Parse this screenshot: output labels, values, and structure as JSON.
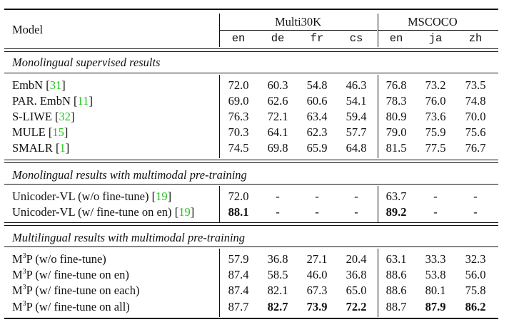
{
  "header": {
    "model_label": "Model",
    "group1": "Multi30K",
    "group2": "MSCOCO",
    "langs": [
      "en",
      "de",
      "fr",
      "cs",
      "en",
      "ja",
      "zh"
    ]
  },
  "sections": [
    {
      "title": "Monolingual supervised results",
      "rows": [
        {
          "name": "EmbN",
          "ref": "31",
          "values": [
            "72.0",
            "60.3",
            "54.8",
            "46.3",
            "76.8",
            "73.2",
            "73.5"
          ],
          "bold": []
        },
        {
          "name": "PAR. EmbN",
          "ref": "11",
          "values": [
            "69.0",
            "62.6",
            "60.6",
            "54.1",
            "78.3",
            "76.0",
            "74.8"
          ],
          "bold": []
        },
        {
          "name": "S-LIWE",
          "ref": "32",
          "values": [
            "76.3",
            "72.1",
            "63.4",
            "59.4",
            "80.9",
            "73.6",
            "70.0"
          ],
          "bold": []
        },
        {
          "name": "MULE",
          "ref": "15",
          "values": [
            "70.3",
            "64.1",
            "62.3",
            "57.7",
            "79.0",
            "75.9",
            "75.6"
          ],
          "bold": []
        },
        {
          "name": "SMALR",
          "ref": "1",
          "values": [
            "74.5",
            "69.8",
            "65.9",
            "64.8",
            "81.5",
            "77.5",
            "76.7"
          ],
          "bold": []
        }
      ]
    },
    {
      "title": "Monolingual results with multimodal pre-training",
      "rows": [
        {
          "name": "Unicoder-VL (w/o fine-tune)",
          "ref": "19",
          "values": [
            "72.0",
            "-",
            "-",
            "-",
            "63.7",
            "-",
            "-"
          ],
          "bold": []
        },
        {
          "name": "Unicoder-VL (w/ fine-tune on en)",
          "ref": "19",
          "values": [
            "88.1",
            "-",
            "-",
            "-",
            "89.2",
            "-",
            "-"
          ],
          "bold": [
            0,
            4
          ]
        }
      ]
    },
    {
      "title": "Multilingual results with multimodal pre-training",
      "rows": [
        {
          "name_pre": "M",
          "name_sup": "3",
          "name_post": "P (w/o fine-tune)",
          "values": [
            "57.9",
            "36.8",
            "27.1",
            "20.4",
            "63.1",
            "33.3",
            "32.3"
          ],
          "bold": []
        },
        {
          "name_pre": "M",
          "name_sup": "3",
          "name_post": "P (w/ fine-tune on en)",
          "values": [
            "87.4",
            "58.5",
            "46.0",
            "36.8",
            "88.6",
            "53.8",
            "56.0"
          ],
          "bold": []
        },
        {
          "name_pre": "M",
          "name_sup": "3",
          "name_post": "P (w/ fine-tune on each)",
          "values": [
            "87.4",
            "82.1",
            "67.3",
            "65.0",
            "88.6",
            "80.1",
            "75.8"
          ],
          "bold": []
        },
        {
          "name_pre": "M",
          "name_sup": "3",
          "name_post": "P (w/ fine-tune on all)",
          "values": [
            "87.7",
            "82.7",
            "73.9",
            "72.2",
            "88.7",
            "87.9",
            "86.2"
          ],
          "bold": [
            1,
            2,
            3,
            5,
            6
          ]
        }
      ]
    }
  ]
}
